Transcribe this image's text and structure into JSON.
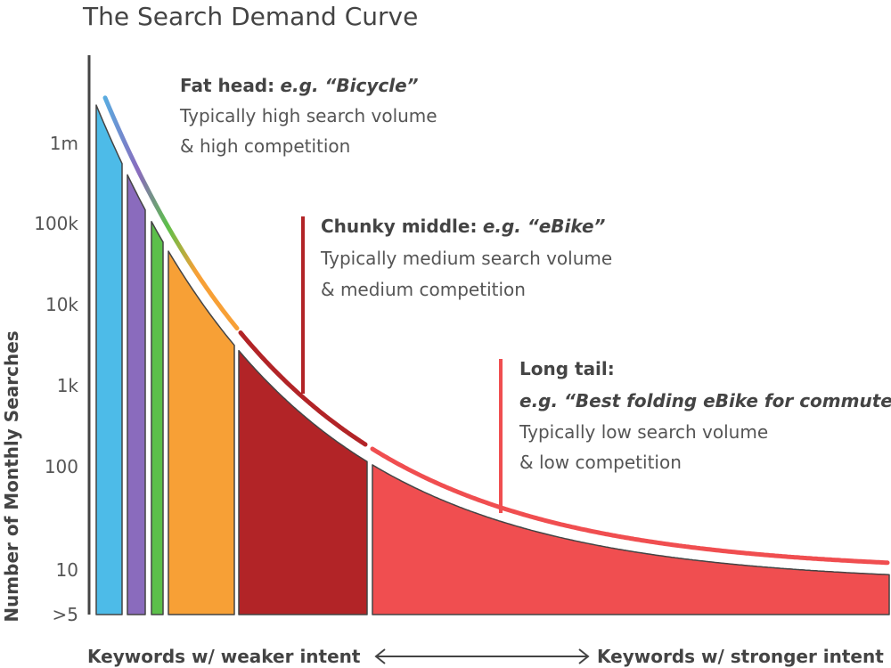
{
  "title": "The Search Demand Curve",
  "y_axis": {
    "label": "Number of Monthly Searches",
    "ticks": [
      "1m",
      "100k",
      "10k",
      "1k",
      "100",
      "10",
      ">5"
    ]
  },
  "x_axis": {
    "left": "Keywords w/ weaker intent",
    "right": "Keywords w/ stronger intent"
  },
  "annotations": [
    {
      "heading": "Fat head:",
      "example": "e.g. “Bicycle”",
      "lines": [
        "Typically high search volume",
        "& high competition"
      ]
    },
    {
      "heading": "Chunky middle:",
      "example": "e.g. “eBike”",
      "lines": [
        "Typically medium search volume",
        "& medium competition"
      ]
    },
    {
      "heading": "Long tail:",
      "example": "e.g. “Best folding eBike for commuters”",
      "lines": [
        "Typically low search volume",
        "& low competition"
      ]
    }
  ]
}
